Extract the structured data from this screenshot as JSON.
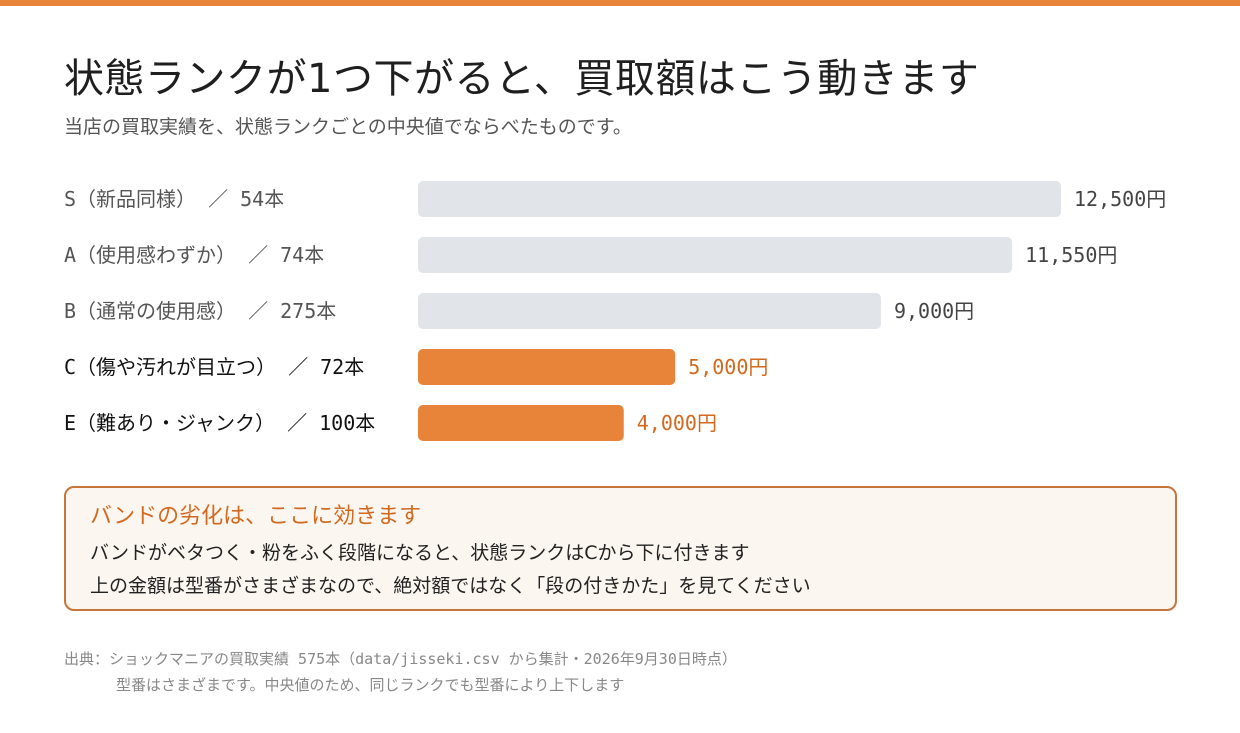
{
  "header": {
    "title": "状態ランクが1つ下がると、買取額はこう動きます",
    "subtitle": "当店の買取実績を、状態ランクごとの中央値でならべたものです。"
  },
  "chart_data": {
    "type": "bar",
    "orientation": "horizontal",
    "categories": [
      "S（新品同様） ／ 54本",
      "A（使用感わずか） ／ 74本",
      "B（通常の使用感） ／ 275本",
      "C（傷や汚れが目立つ） ／ 72本",
      "E（難あり・ジャンク） ／ 100本"
    ],
    "values": [
      12500,
      11550,
      9000,
      5000,
      4000
    ],
    "value_labels": [
      "12,500円",
      "11,550円",
      "9,000円",
      "5,000円",
      "4,000円"
    ],
    "highlighted": [
      false,
      false,
      false,
      true,
      true
    ],
    "xlim": [
      0,
      12500
    ],
    "colors": {
      "normal_bar": "#e1e4e9",
      "highlight_bar": "#e8833a",
      "normal_label": "#555555",
      "highlight_label": "#111111",
      "normal_value": "#444444",
      "highlight_value": "#d2691e"
    }
  },
  "note": {
    "title": "バンドの劣化は、ここに効きます",
    "line1": "バンドがベタつく・粉をふく段階になると、状態ランクはCから下に付きます",
    "line2": "上の金額は型番がさまざまなので、絶対額ではなく「段の付きかた」を見てください"
  },
  "footer": {
    "source": "出典：ショックマニアの買取実績 575本（data/jisseki.csv から集計・2026年9月30日時点）",
    "note": "型番はさまざまです。中央値のため、同じランクでも型番により上下します"
  },
  "colors": {
    "accent": "#e8833a",
    "note_border": "#c8753a",
    "note_bg": "#fbf6f0"
  }
}
